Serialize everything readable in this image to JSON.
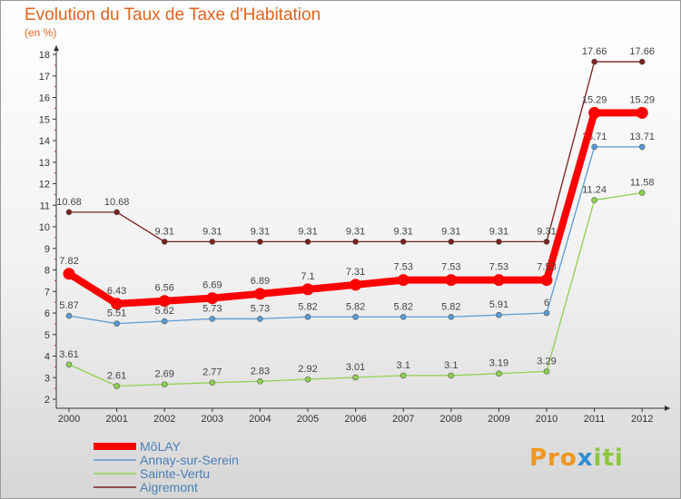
{
  "header": {
    "title": "Evolution du Taux de Taxe d'Habitation",
    "subtitle": "(en %)"
  },
  "logo": {
    "text": "Proxiti"
  },
  "chart_data": {
    "type": "line",
    "title": "Evolution du Taux de Taxe d'Habitation",
    "ylabel": "(en %)",
    "xlabel": "",
    "x": [
      "2000",
      "2001",
      "2002",
      "2003",
      "2004",
      "2005",
      "2006",
      "2007",
      "2008",
      "2009",
      "2010",
      "2011",
      "2012"
    ],
    "ylim": [
      2,
      18
    ],
    "yticks": [
      "2",
      "3",
      "4",
      "5",
      "6",
      "7",
      "8",
      "9",
      "10",
      "11",
      "12",
      "13",
      "14",
      "15",
      "16",
      "17",
      "18"
    ],
    "grid": false,
    "legend_position": "bottom-left",
    "series": [
      {
        "name": "Aigremont",
        "color": "#7a1f1f",
        "labels": [
          "10.68",
          "10.68",
          "9.31",
          "9.31",
          "9.31",
          "9.31",
          "9.31",
          "9.31",
          "9.31",
          "9.31",
          "9.31",
          "17.66",
          "17.66"
        ],
        "values": [
          10.68,
          10.68,
          9.31,
          9.31,
          9.31,
          9.31,
          9.31,
          9.31,
          9.31,
          9.31,
          9.31,
          17.66,
          17.66
        ]
      },
      {
        "name": "Annay-sur-Serein",
        "color": "#5b9bd5",
        "labels": [
          "5.87",
          "5.51",
          "5.62",
          "5.73",
          "5.73",
          "5.82",
          "5.82",
          "5.82",
          "5.82",
          "5.91",
          "6",
          "13.71",
          "13.71"
        ],
        "values": [
          5.87,
          5.51,
          5.62,
          5.73,
          5.73,
          5.82,
          5.82,
          5.82,
          5.82,
          5.91,
          6,
          13.71,
          13.71
        ]
      },
      {
        "name": "Sainte-Vertu",
        "color": "#8fd14f",
        "labels": [
          "3.61",
          "2.61",
          "2.69",
          "2.77",
          "2.83",
          "2.92",
          "3.01",
          "3.1",
          "3.1",
          "3.19",
          "3.29",
          "11.24",
          "11.58"
        ],
        "values": [
          3.61,
          2.61,
          2.69,
          2.77,
          2.83,
          2.92,
          3.01,
          3.1,
          3.1,
          3.19,
          3.29,
          11.24,
          11.58
        ]
      },
      {
        "name": "MôLAY",
        "color": "#ff0000",
        "labels": [
          "7.82",
          "6.43",
          "6.56",
          "6.69",
          "6.89",
          "7.1",
          "7.31",
          "7.53",
          "7.53",
          "7.53",
          "7.53",
          "15.29",
          "15.29"
        ],
        "values": [
          7.82,
          6.43,
          6.56,
          6.69,
          6.89,
          7.1,
          7.31,
          7.53,
          7.53,
          7.53,
          7.53,
          15.29,
          15.29
        ]
      }
    ],
    "legend": [
      "MôLAY",
      "Annay-sur-Serein",
      "Sainte-Vertu",
      "Aigremont"
    ]
  }
}
